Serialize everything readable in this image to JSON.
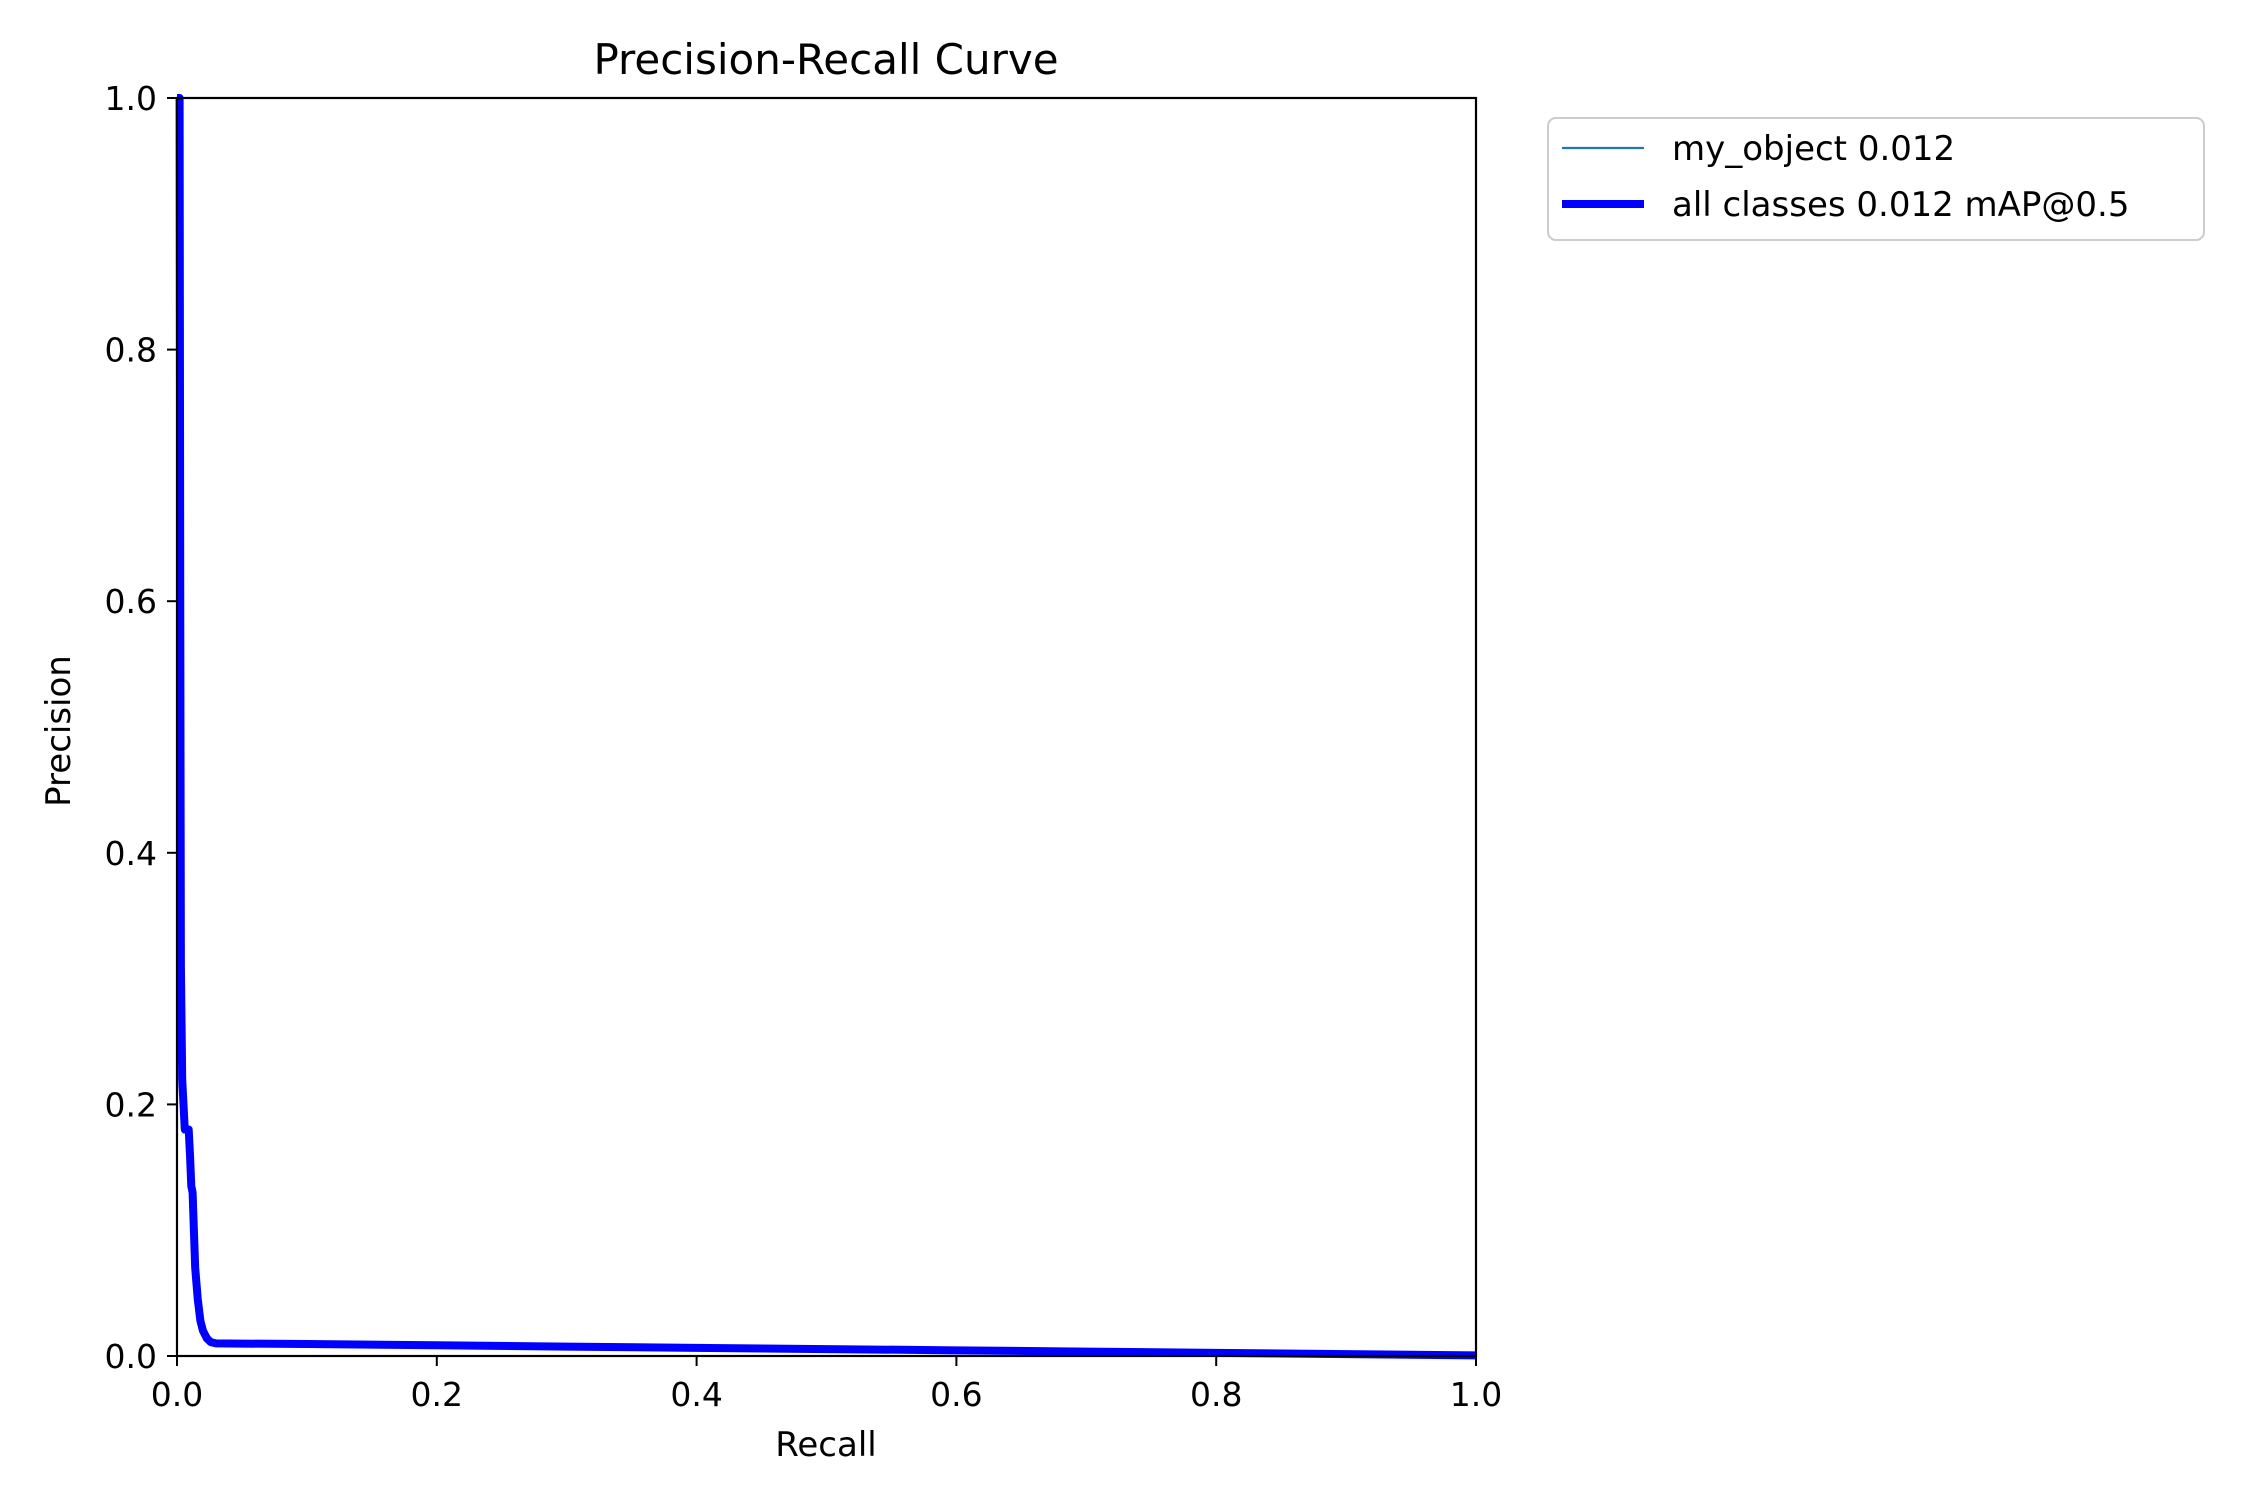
{
  "chart_data": {
    "type": "line",
    "title": "Precision-Recall Curve",
    "xlabel": "Recall",
    "ylabel": "Precision",
    "xlim": [
      0,
      1
    ],
    "ylim": [
      0,
      1
    ],
    "x_ticks": [
      "0.0",
      "0.2",
      "0.4",
      "0.6",
      "0.8",
      "1.0"
    ],
    "y_ticks": [
      "0.0",
      "0.2",
      "0.4",
      "0.6",
      "0.8",
      "1.0"
    ],
    "grid": false,
    "legend_position": "outside-top-right",
    "series": [
      {
        "name": "my_object 0.012",
        "color": "#1f77b4",
        "style": "thin",
        "x": [
          0.0,
          0.002,
          0.0025,
          0.003,
          0.004,
          0.006,
          0.008,
          0.009,
          0.01,
          0.011,
          0.012,
          0.013,
          0.014,
          0.016,
          0.018,
          0.02,
          0.023,
          0.026,
          0.03,
          0.1,
          0.2,
          0.3,
          0.4,
          0.5,
          0.6,
          0.7,
          0.8,
          0.9,
          1.0
        ],
        "y": [
          1.0,
          1.0,
          0.6,
          0.31,
          0.22,
          0.18,
          0.18,
          0.18,
          0.16,
          0.135,
          0.13,
          0.1,
          0.07,
          0.045,
          0.028,
          0.02,
          0.014,
          0.011,
          0.01,
          0.0095,
          0.0085,
          0.0075,
          0.0065,
          0.0055,
          0.0045,
          0.0035,
          0.0025,
          0.0015,
          0.0005
        ]
      },
      {
        "name": "all classes 0.012 mAP@0.5",
        "color": "#0000ff",
        "style": "thick",
        "x": [
          0.0,
          0.002,
          0.0025,
          0.003,
          0.004,
          0.006,
          0.008,
          0.009,
          0.01,
          0.011,
          0.012,
          0.013,
          0.014,
          0.016,
          0.018,
          0.02,
          0.023,
          0.026,
          0.03,
          0.1,
          0.2,
          0.3,
          0.4,
          0.5,
          0.6,
          0.7,
          0.8,
          0.9,
          1.0
        ],
        "y": [
          1.0,
          1.0,
          0.6,
          0.31,
          0.22,
          0.18,
          0.18,
          0.18,
          0.16,
          0.135,
          0.13,
          0.1,
          0.07,
          0.045,
          0.028,
          0.02,
          0.014,
          0.011,
          0.01,
          0.0095,
          0.0085,
          0.0075,
          0.0065,
          0.0055,
          0.0045,
          0.0035,
          0.0025,
          0.0015,
          0.0005
        ]
      }
    ]
  }
}
